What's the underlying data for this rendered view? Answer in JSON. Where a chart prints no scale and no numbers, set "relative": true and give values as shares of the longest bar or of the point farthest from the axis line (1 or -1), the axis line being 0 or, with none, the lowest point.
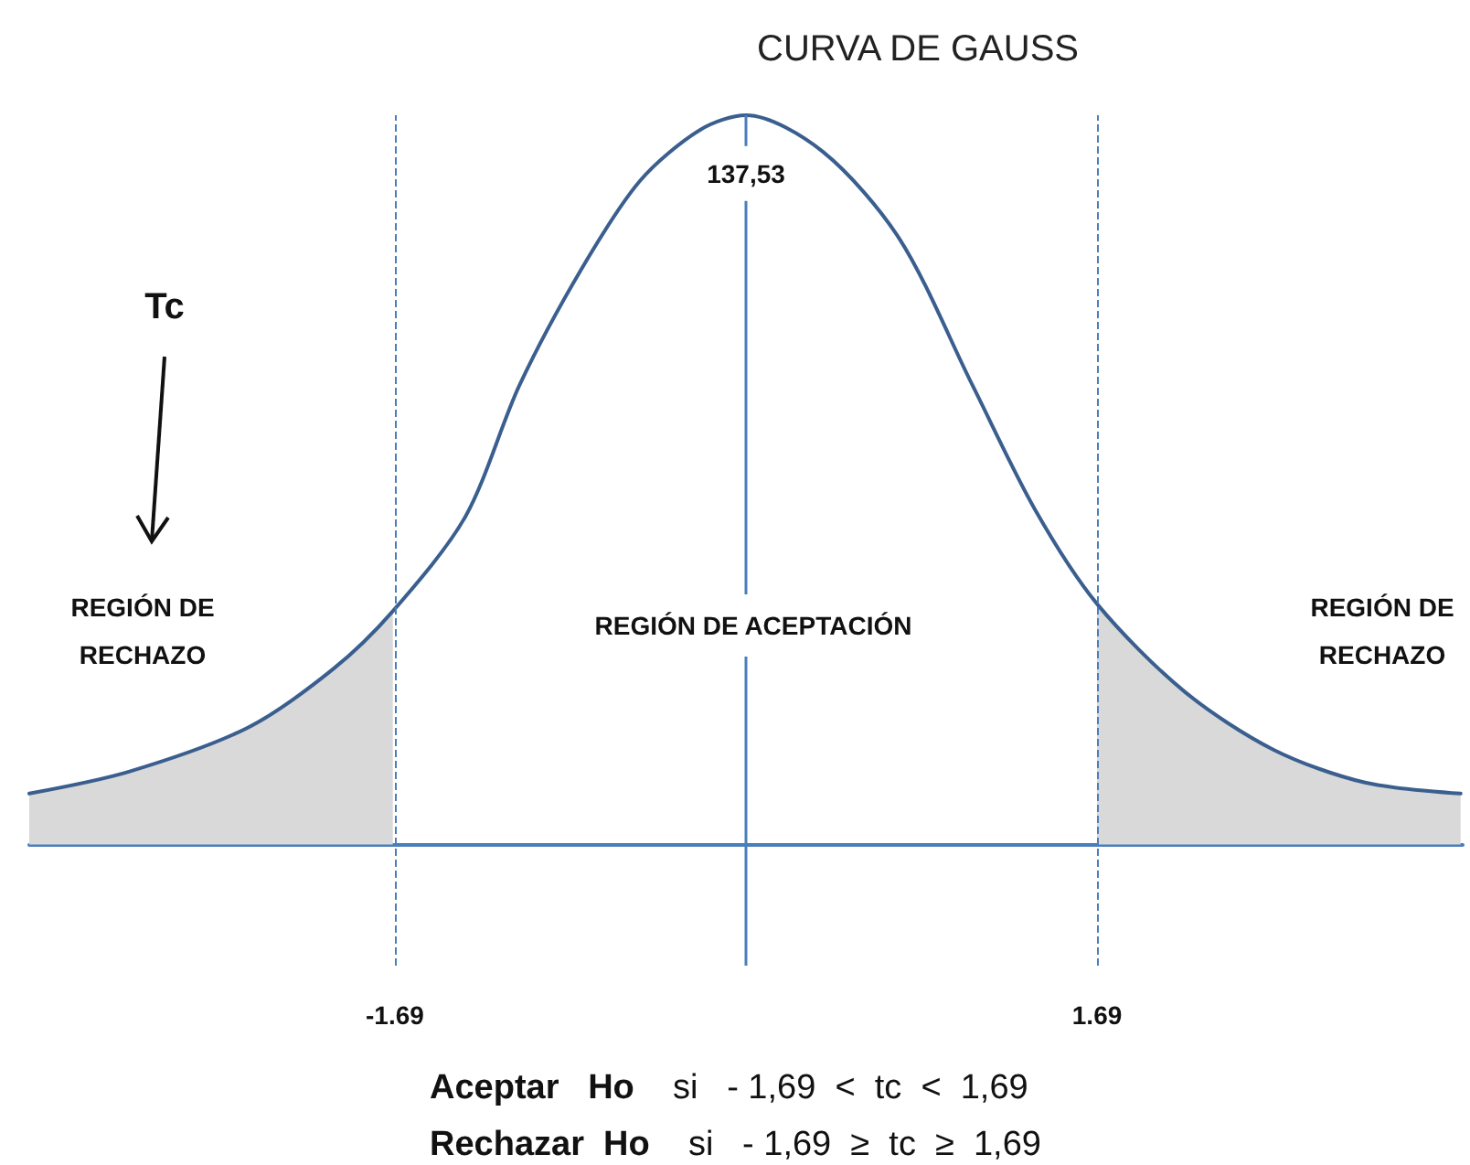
{
  "chart_data": {
    "type": "line",
    "title": "CURVA DE GAUSS",
    "relative": true,
    "x": [
      -3.45,
      -2.97,
      -2.4,
      -1.99,
      -1.7,
      -1.35,
      -1.09,
      -0.79,
      -0.51,
      -0.22,
      0,
      0.37,
      0.74,
      1.09,
      1.39,
      1.69,
      2.11,
      2.54,
      2.98,
      3.44
    ],
    "series": [
      {
        "color": "#3a5f8f",
        "values": [
          0.07,
          0.1,
          0.16,
          0.24,
          0.32,
          0.45,
          0.63,
          0.79,
          0.91,
          0.98,
          1,
          0.95,
          0.83,
          0.63,
          0.46,
          0.33,
          0.21,
          0.13,
          0.085,
          0.07
        ]
      },
      {
        "type": "area",
        "color": "#d9d9d9",
        "x": [
          -3.45,
          -2.97,
          -2.4,
          -1.99,
          -1.7
        ],
        "values": [
          0.07,
          0.1,
          0.16,
          0.24,
          0.32
        ]
      },
      {
        "type": "area",
        "color": "#d9d9d9",
        "x": [
          1.69,
          2.11,
          2.54,
          2.98,
          3.44
        ],
        "values": [
          0.33,
          0.21,
          0.13,
          0.085,
          0.07
        ]
      }
    ],
    "xlim": [
      -3.45,
      3.45
    ],
    "xticks": [
      -1.69,
      1.69
    ],
    "ref_lines": [
      {
        "axis": "x",
        "value": -1.69,
        "color": "#4a7ebb",
        "line_style": "dashed"
      },
      {
        "axis": "x",
        "value": 1.69,
        "color": "#4a7ebb",
        "line_style": "dashed"
      },
      {
        "axis": "x",
        "value": 0,
        "color": "#4a7ebb",
        "line_style": "solid"
      }
    ],
    "annotations": [
      {
        "text": "137,53",
        "x": 0,
        "y": 0.92
      },
      "REGIÓN DE\nRECHAZO",
      "REGIÓN DE ACEPTACIÓN",
      "REGIÓN DE\nRECHAZO",
      "Tc",
      "Aceptar   Ho    si   - 1,69  <  tc  <  1,69",
      "Rechazar  Ho    si   - 1,69  ≥  tc  ≥  1,69"
    ],
    "grid": false,
    "marker": "none",
    "line_style": "solid"
  }
}
